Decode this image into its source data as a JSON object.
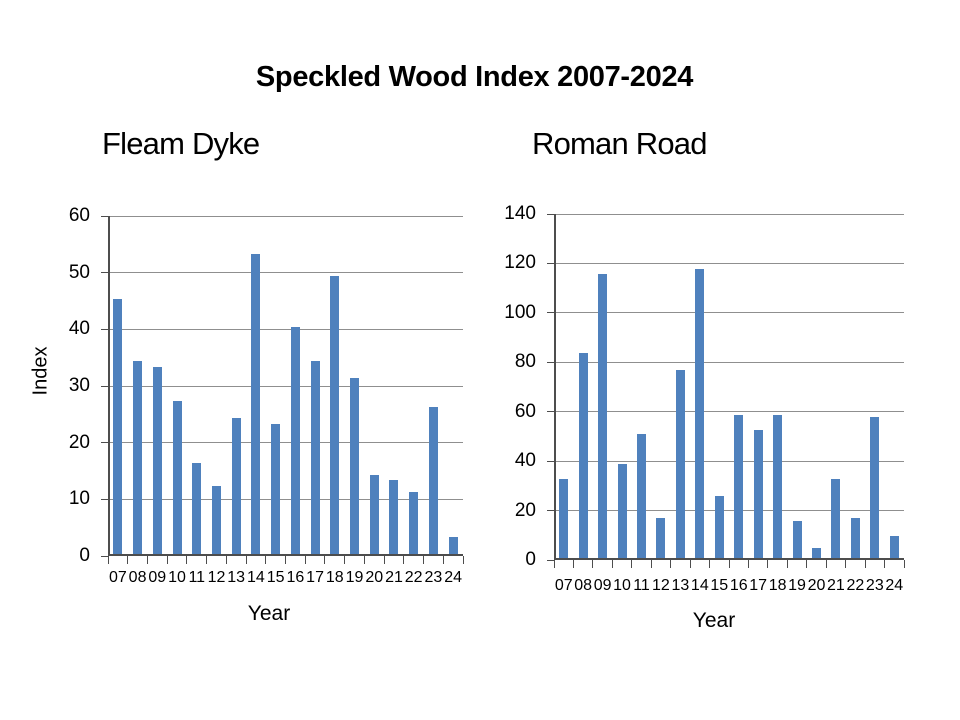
{
  "page_title": "Speckled Wood Index 2007-2024",
  "colors": {
    "bar": "#4f81bd",
    "gridline": "#8f8f8f",
    "axis": "#4d4d4d",
    "text": "#000000",
    "background": "#ffffff"
  },
  "chart_data": [
    {
      "type": "bar",
      "title": "Fleam Dyke",
      "xlabel": "Year",
      "ylabel": "Index",
      "categories": [
        "07",
        "08",
        "09",
        "10",
        "11",
        "12",
        "13",
        "14",
        "15",
        "16",
        "17",
        "18",
        "19",
        "20",
        "21",
        "22",
        "23",
        "24"
      ],
      "values": [
        45,
        34,
        33,
        27,
        16,
        12,
        24,
        53,
        23,
        40,
        34,
        49,
        31,
        14,
        13,
        11,
        26,
        3
      ],
      "ylim": [
        0,
        60
      ],
      "ytick_step": 10,
      "y_ticks": [
        "0",
        "10",
        "20",
        "30",
        "40",
        "50",
        "60"
      ],
      "grid": true,
      "legend": false
    },
    {
      "type": "bar",
      "title": "Roman Road",
      "xlabel": "Year",
      "ylabel": "",
      "categories": [
        "07",
        "08",
        "09",
        "10",
        "11",
        "12",
        "13",
        "14",
        "15",
        "16",
        "17",
        "18",
        "19",
        "20",
        "21",
        "22",
        "23",
        "24"
      ],
      "values": [
        32,
        83,
        115,
        38,
        50,
        16,
        76,
        117,
        25,
        58,
        52,
        58,
        15,
        4,
        32,
        16,
        57,
        9
      ],
      "ylim": [
        0,
        140
      ],
      "ytick_step": 20,
      "y_ticks": [
        "0",
        "20",
        "40",
        "60",
        "80",
        "100",
        "120",
        "140"
      ],
      "grid": true,
      "legend": false
    }
  ]
}
